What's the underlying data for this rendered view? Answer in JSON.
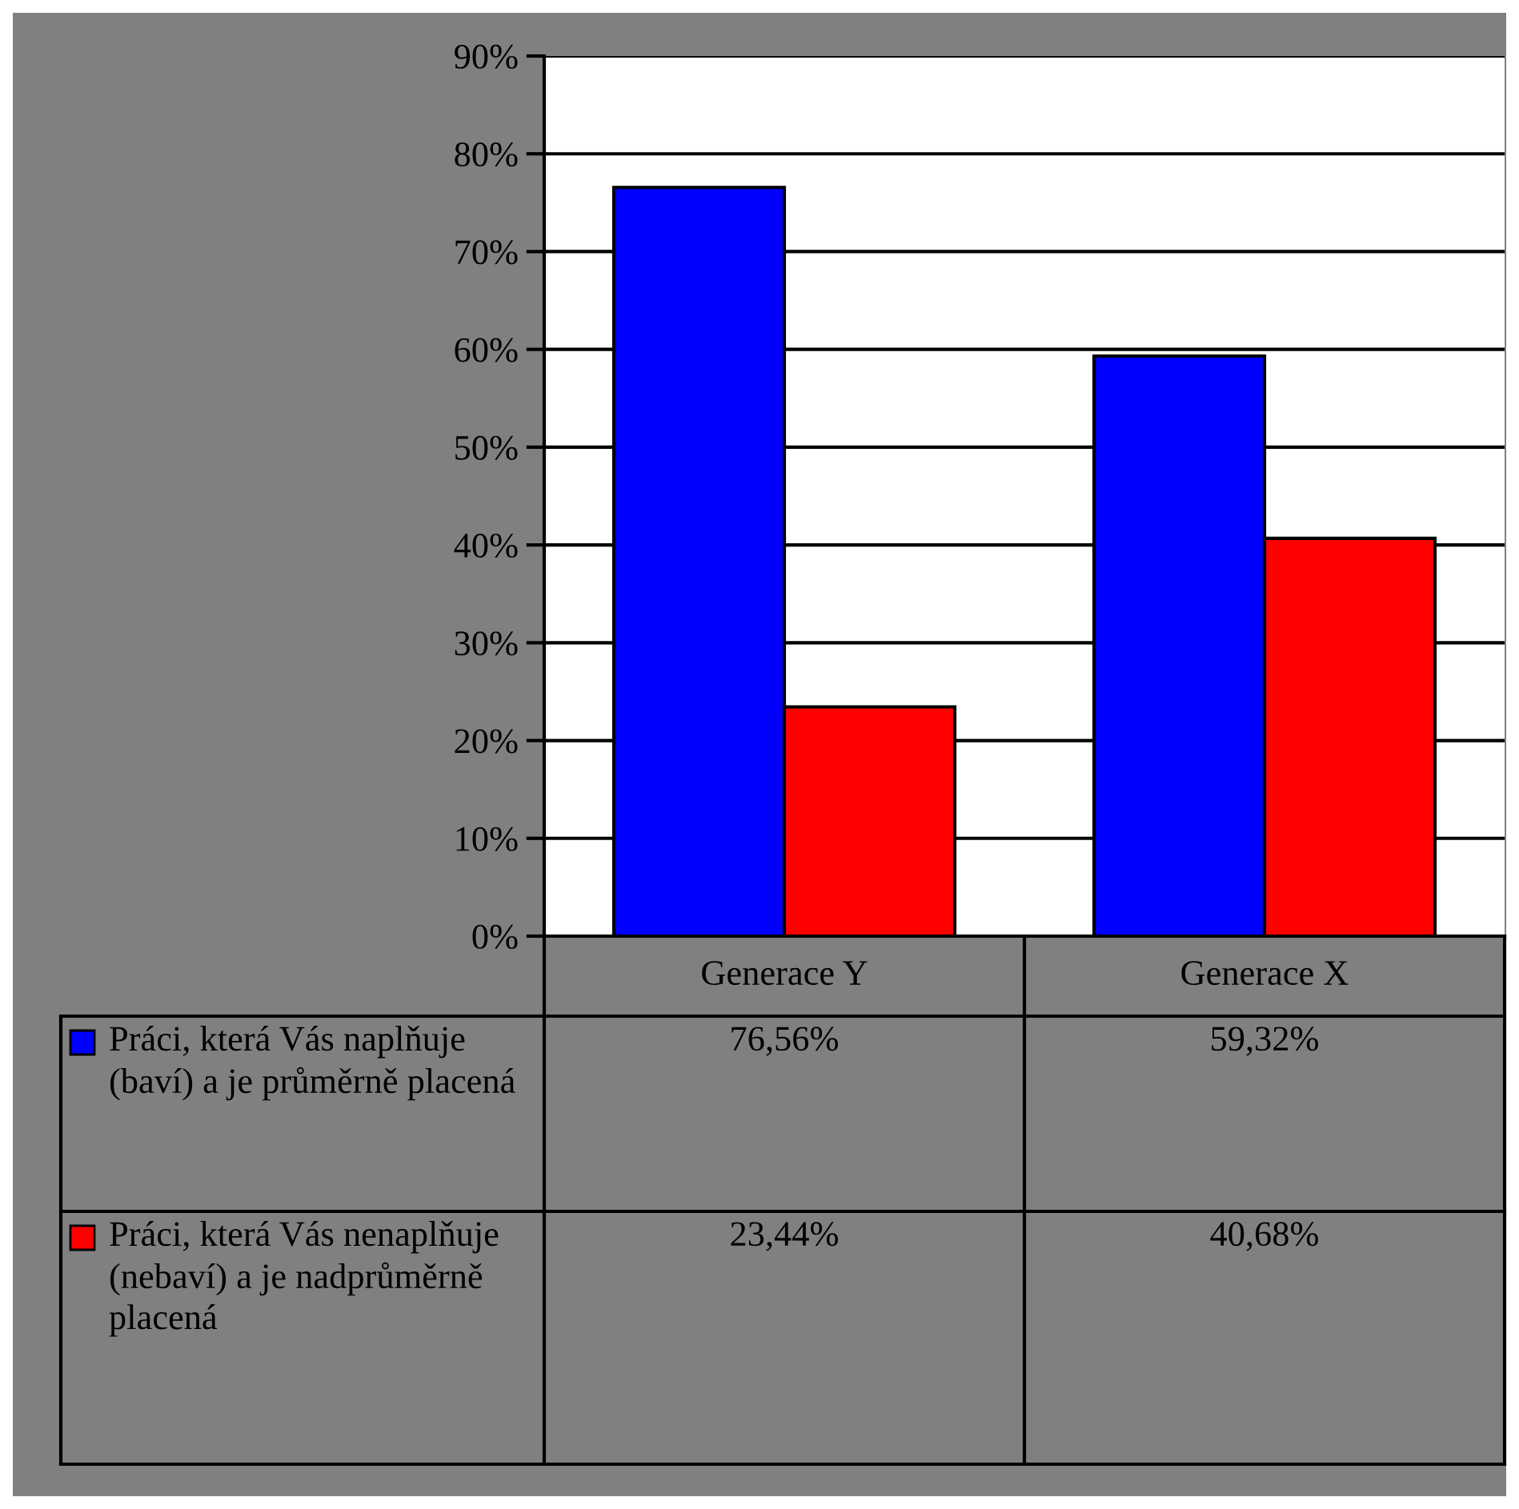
{
  "chart_data": {
    "type": "bar",
    "categories": [
      "Generace Y",
      "Generace X"
    ],
    "series": [
      {
        "name": "Práci, která Vás naplňuje (baví) a je průměrně placená",
        "color": "#0000ff",
        "values": [
          76.56,
          59.32
        ],
        "value_labels": [
          "76,56%",
          "59,32%"
        ]
      },
      {
        "name": "Práci, která Vás nenaplňuje (nebaví) a je nadprůměrně placená",
        "color": "#ff0000",
        "values": [
          23.44,
          40.68
        ],
        "value_labels": [
          "23,44%",
          "40,68%"
        ]
      }
    ],
    "ylim": [
      0,
      90
    ],
    "yticks": [
      {
        "value": 0,
        "label": "0%"
      },
      {
        "value": 10,
        "label": "10%"
      },
      {
        "value": 20,
        "label": "20%"
      },
      {
        "value": 30,
        "label": "30%"
      },
      {
        "value": 40,
        "label": "40%"
      },
      {
        "value": 50,
        "label": "50%"
      },
      {
        "value": 60,
        "label": "60%"
      },
      {
        "value": 70,
        "label": "70%"
      },
      {
        "value": 80,
        "label": "80%"
      },
      {
        "value": 90,
        "label": "90%"
      }
    ],
    "grid": "y",
    "legend": "bottom"
  }
}
